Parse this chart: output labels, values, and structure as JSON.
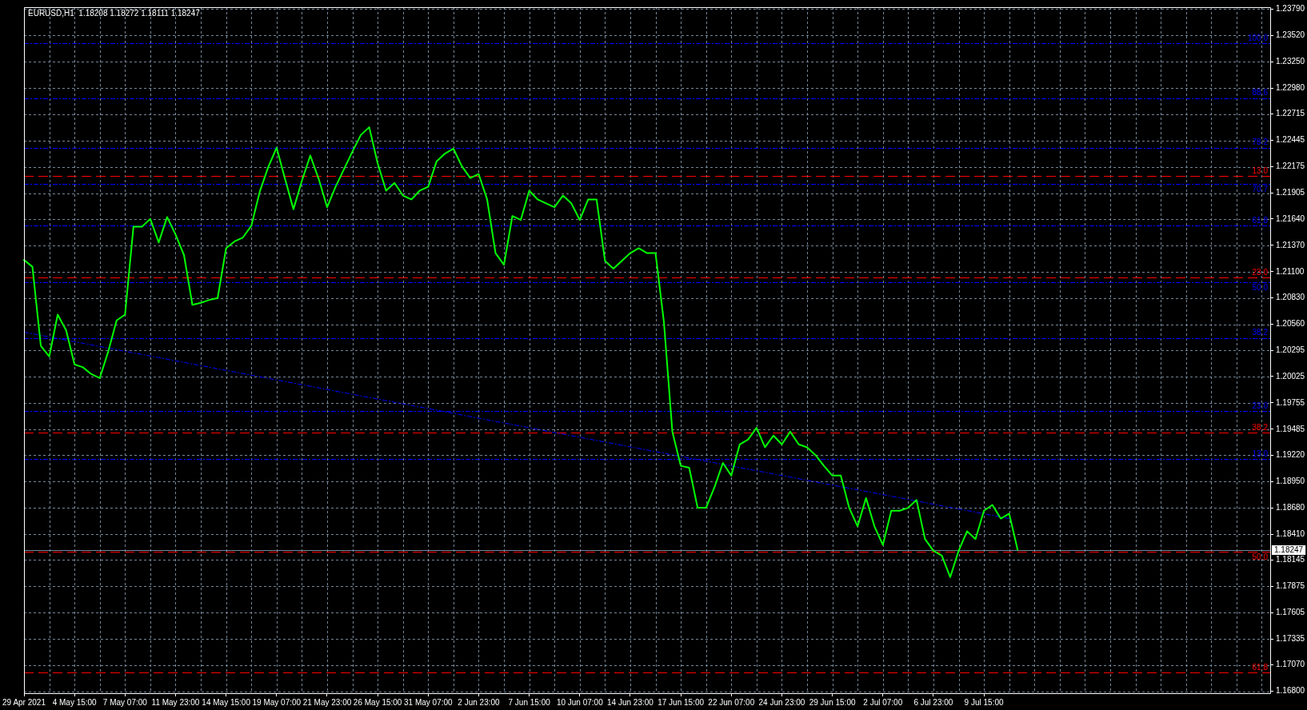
{
  "chart_data": {
    "type": "line",
    "title": "EURUSD,H1  1.18208 1.18272 1.18111 1.18247",
    "categories": [
      "29 Apr 2021",
      null,
      null,
      null,
      null,
      null,
      "4 May 15:00",
      null,
      null,
      null,
      null,
      null,
      "7 May 07:00",
      null,
      null,
      null,
      null,
      null,
      "11 May 23:00",
      null,
      null,
      null,
      null,
      null,
      "14 May 15:00",
      null,
      null,
      null,
      null,
      null,
      "19 May 07:00",
      null,
      null,
      null,
      null,
      null,
      "21 May 23:00",
      null,
      null,
      null,
      null,
      null,
      "26 May 15:00",
      null,
      null,
      null,
      null,
      null,
      "31 May 07:00",
      null,
      null,
      null,
      null,
      null,
      "2 Jun 23:00",
      null,
      null,
      null,
      null,
      null,
      "7 Jun 15:00",
      null,
      null,
      null,
      null,
      null,
      "10 Jun 07:00",
      null,
      null,
      null,
      null,
      null,
      "14 Jun 23:00",
      null,
      null,
      null,
      null,
      null,
      "17 Jun 15:00",
      null,
      null,
      null,
      null,
      null,
      "22 Jun 07:00",
      null,
      null,
      null,
      null,
      null,
      "24 Jun 23:00",
      null,
      null,
      null,
      null,
      null,
      "29 Jun 15:00",
      null,
      null,
      null,
      null,
      null,
      "2 Jul 07:00",
      null,
      null,
      null,
      null,
      null,
      "6 Jul 23:00",
      null,
      null,
      null,
      null,
      null,
      "9 Jul 15:00",
      null,
      null,
      null,
      null,
      null,
      null,
      null,
      null,
      null,
      null,
      null,
      null,
      null,
      null,
      null,
      null,
      null,
      null,
      null,
      null,
      null,
      null,
      null,
      null,
      null,
      null,
      null,
      null,
      null,
      null,
      null,
      null,
      null,
      null
    ],
    "series": [
      {
        "color": "#00ff00",
        "values": [
          1.2122,
          1.2115,
          1.2034,
          1.2023,
          1.2066,
          1.205,
          1.2015,
          1.2012,
          1.2005,
          1.2001,
          1.2028,
          1.206,
          1.2066,
          1.2156,
          1.2156,
          1.2164,
          1.214,
          1.2166,
          1.2148,
          1.2127,
          1.2076,
          1.2078,
          1.2081,
          1.2083,
          1.2134,
          1.2141,
          1.2145,
          1.2157,
          1.2192,
          1.2217,
          1.2237,
          1.2205,
          1.2174,
          1.2203,
          1.2229,
          1.2205,
          1.2176,
          1.2197,
          1.2215,
          1.2233,
          1.225,
          1.2258,
          1.2221,
          1.2193,
          1.2201,
          1.2188,
          1.2184,
          1.2193,
          1.2197,
          1.2223,
          1.2231,
          1.2236,
          1.2218,
          1.2206,
          1.221,
          1.2184,
          1.2129,
          1.2117,
          1.2167,
          1.2163,
          1.2193,
          1.2184,
          1.218,
          1.2176,
          1.2188,
          1.218,
          1.2163,
          1.2184,
          1.2184,
          1.2121,
          1.2113,
          1.2121,
          1.2129,
          1.2134,
          1.2129,
          1.2129,
          1.2058,
          1.1946,
          1.1911,
          1.1909,
          1.1868,
          1.1868,
          1.1889,
          1.1914,
          1.1901,
          1.1933,
          1.1938,
          1.195,
          1.193,
          1.1942,
          1.1933,
          1.1946,
          1.1933,
          1.193,
          1.1922,
          1.1911,
          1.1901,
          1.1901,
          1.1868,
          1.1849,
          1.1878,
          1.1849,
          1.183,
          1.1865,
          1.1865,
          1.1868,
          1.1876,
          1.1836,
          1.1824,
          1.1819,
          1.1797,
          1.1824,
          1.1844,
          1.1836,
          1.1865,
          1.1871,
          1.1857,
          1.1862,
          1.1825,
          null,
          null,
          null,
          null,
          null,
          null,
          null,
          null,
          null,
          null,
          null,
          null,
          null,
          null,
          null,
          null,
          null,
          null,
          null,
          null,
          null,
          null,
          null,
          null,
          null,
          null,
          null,
          null,
          null,
          null
        ]
      },
      {
        "color": "#0000ff",
        "line_style": "dotted",
        "values": [
          1.2048,
          null,
          null,
          null,
          null,
          null,
          null,
          null,
          null,
          null,
          null,
          null,
          null,
          null,
          null,
          null,
          null,
          null,
          null,
          null,
          null,
          null,
          null,
          null,
          null,
          null,
          null,
          null,
          null,
          null,
          null,
          null,
          null,
          null,
          null,
          null,
          null,
          null,
          null,
          null,
          null,
          null,
          null,
          null,
          null,
          null,
          null,
          null,
          null,
          null,
          null,
          null,
          null,
          null,
          null,
          null,
          null,
          null,
          null,
          null,
          null,
          null,
          null,
          null,
          null,
          null,
          null,
          null,
          null,
          null,
          null,
          null,
          null,
          null,
          null,
          null,
          null,
          null,
          null,
          null,
          null,
          null,
          null,
          null,
          null,
          null,
          null,
          null,
          null,
          null,
          null,
          null,
          null,
          null,
          null,
          null,
          null,
          null,
          null,
          null,
          null,
          null,
          null,
          null,
          null,
          null,
          null,
          null,
          null,
          null,
          null,
          null,
          null,
          null,
          null,
          null,
          null,
          1.1857,
          null,
          null,
          null,
          null,
          null,
          null,
          null,
          null,
          null,
          null,
          null,
          null,
          null,
          null,
          null,
          null,
          null,
          null,
          null,
          null,
          null,
          null,
          null,
          null,
          null,
          null,
          null,
          null,
          null,
          null,
          null
        ]
      }
    ],
    "ylim": [
      1.1678,
      1.2381
    ],
    "yticks": [
      {
        "value": 1.2379,
        "label": "1.23790"
      },
      {
        "value": 1.2352,
        "label": "1.23520"
      },
      {
        "value": 1.2325,
        "label": "1.23250"
      },
      {
        "value": 1.2298,
        "label": "1.22980"
      },
      {
        "value": 1.22715,
        "label": "1.22715"
      },
      {
        "value": 1.22445,
        "label": "1.22445"
      },
      {
        "value": 1.22175,
        "label": "1.22175"
      },
      {
        "value": 1.21905,
        "label": "1.21905"
      },
      {
        "value": 1.2164,
        "label": "1.21640"
      },
      {
        "value": 1.2137,
        "label": "1.21370"
      },
      {
        "value": 1.211,
        "label": "1.21100"
      },
      {
        "value": 1.2083,
        "label": "1.20830"
      },
      {
        "value": 1.2056,
        "label": "1.20560"
      },
      {
        "value": 1.20295,
        "label": "1.20295"
      },
      {
        "value": 1.20025,
        "label": "1.20025"
      },
      {
        "value": 1.19755,
        "label": "1.19755"
      },
      {
        "value": 1.19485,
        "label": "1.19485"
      },
      {
        "value": 1.1922,
        "label": "1.19220"
      },
      {
        "value": 1.1895,
        "label": "1.18950"
      },
      {
        "value": 1.1868,
        "label": "1.18680"
      },
      {
        "value": 1.1841,
        "label": "1.18410"
      },
      {
        "value": 1.18145,
        "label": "1.18145"
      },
      {
        "value": 1.17875,
        "label": "1.17875"
      },
      {
        "value": 1.17605,
        "label": "1.17605"
      },
      {
        "value": 1.17335,
        "label": "1.17335"
      },
      {
        "value": 1.1707,
        "label": "1.17070"
      },
      {
        "value": 1.168,
        "label": "1.16800"
      }
    ],
    "grid": true,
    "ref_lines": [
      {
        "axis": "y",
        "value": 1.2344,
        "color": "#0000ff",
        "line_style": "dotted"
      },
      {
        "axis": "y",
        "value": 1.2288,
        "color": "#0000ff",
        "line_style": "dotted"
      },
      {
        "axis": "y",
        "value": 1.2237,
        "color": "#0000ff",
        "line_style": "dotted"
      },
      {
        "axis": "y",
        "value": 1.22,
        "color": "#0000ff",
        "line_style": "dotted"
      },
      {
        "axis": "y",
        "value": 1.2157,
        "color": "#0000ff",
        "line_style": "dotted"
      },
      {
        "axis": "y",
        "value": 1.2099,
        "color": "#0000ff",
        "line_style": "dotted"
      },
      {
        "axis": "y",
        "value": 1.2042,
        "color": "#0000ff",
        "line_style": "dotted"
      },
      {
        "axis": "y",
        "value": 1.1967,
        "color": "#0000ff",
        "line_style": "dotted"
      },
      {
        "axis": "y",
        "value": 1.1918,
        "color": "#0000ff",
        "line_style": "dotted"
      },
      {
        "axis": "y",
        "value": 1.2208,
        "color": "#ff0000",
        "line_style": "dashed"
      },
      {
        "axis": "y",
        "value": 1.2104,
        "color": "#ff0000",
        "line_style": "dashed"
      },
      {
        "axis": "y",
        "value": 1.1945,
        "color": "#ff0000",
        "line_style": "dashed"
      },
      {
        "axis": "y",
        "value": 1.1823,
        "color": "#ff0000",
        "line_style": "dashed"
      },
      {
        "axis": "y",
        "value": 1.1699,
        "color": "#ff0000",
        "line_style": "dashed"
      },
      {
        "axis": "y",
        "value": 1.18247,
        "label": "1.18247",
        "color": "#778899",
        "line_style": "solid"
      }
    ],
    "annotations": [
      {
        "text": "100.0",
        "y": 1.2344
      },
      {
        "text": "88.6",
        "y": 1.2288
      },
      {
        "text": "78.2",
        "y": 1.2237
      },
      {
        "text": "70.7",
        "y": 1.22
      },
      {
        "text": "61.8",
        "y": 1.2157
      },
      {
        "text": "50.0",
        "y": 1.2099
      },
      {
        "text": "38.2",
        "y": 1.2042
      },
      {
        "text": "23.0",
        "y": 1.1967
      },
      {
        "text": "13.0",
        "y": 1.1918
      },
      {
        "text": "13.0",
        "y": 1.2208
      },
      {
        "text": "23.0",
        "y": 1.2104
      },
      {
        "text": "38.2",
        "y": 1.1945
      },
      {
        "text": "50.0",
        "y": 1.1823
      },
      {
        "text": "61.8",
        "y": 1.1699
      }
    ]
  }
}
